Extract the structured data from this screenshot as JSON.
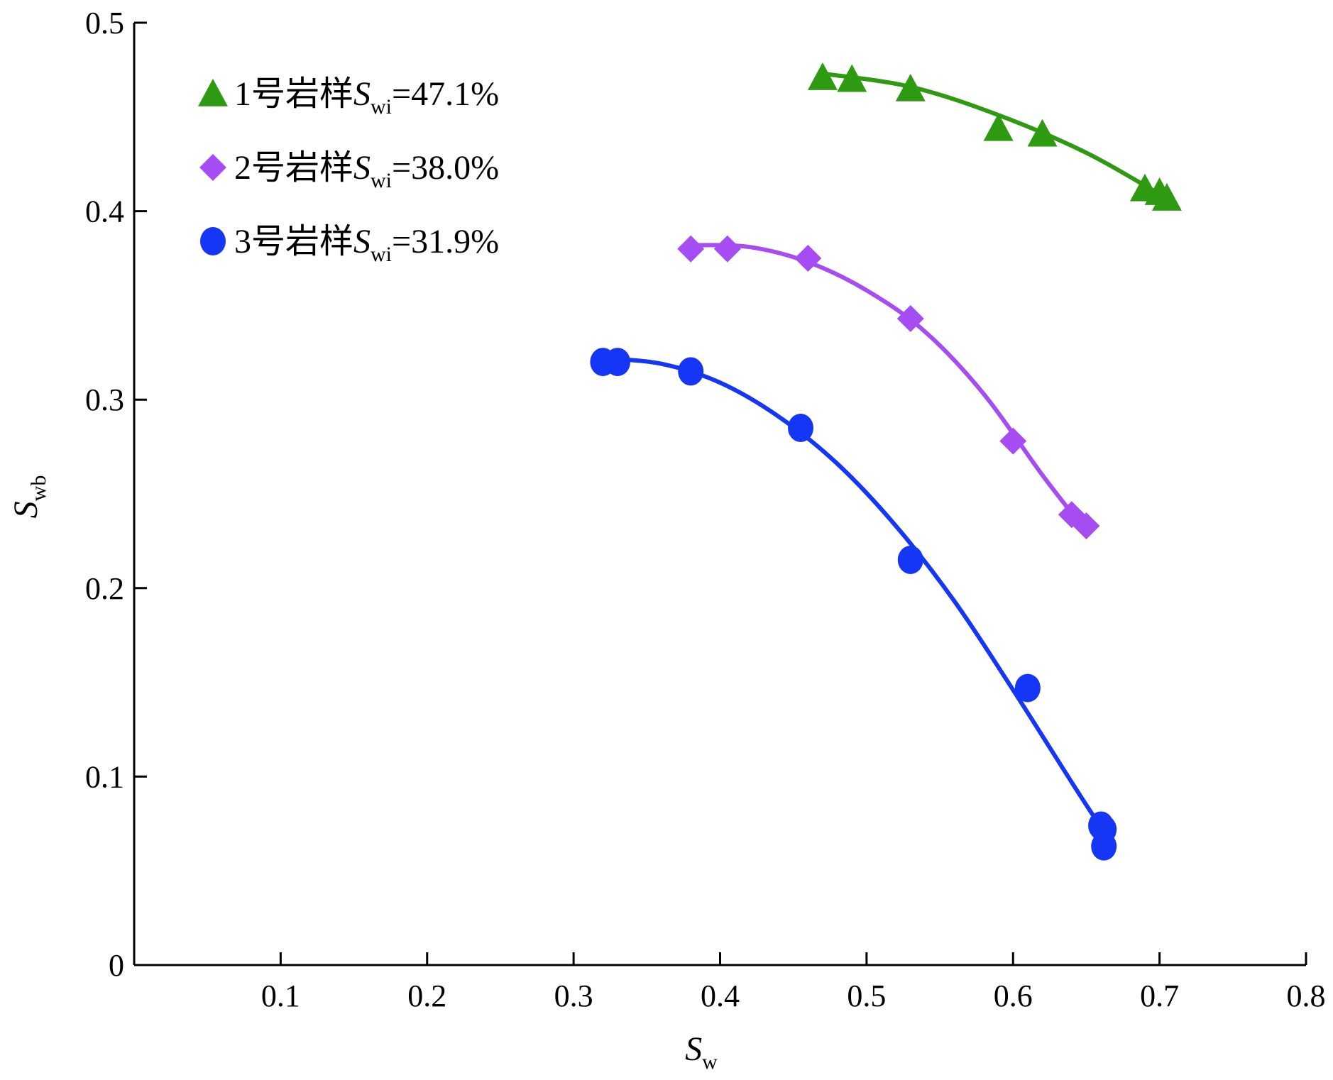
{
  "chart_data": {
    "type": "scatter",
    "xlabel": "S",
    "xlabel_sub": "w",
    "ylabel": "S",
    "ylabel_sub": "wb",
    "xlim": [
      0,
      0.8
    ],
    "ylim": [
      0,
      0.5
    ],
    "x_ticks": [
      "0.1",
      "0.2",
      "0.3",
      "0.4",
      "0.5",
      "0.6",
      "0.7",
      "0.8"
    ],
    "y_ticks": [
      "0",
      "0.1",
      "0.2",
      "0.3",
      "0.4",
      "0.5"
    ],
    "x_tick_values": [
      0.1,
      0.2,
      0.3,
      0.4,
      0.5,
      0.6,
      0.7,
      0.8
    ],
    "y_tick_values": [
      0,
      0.1,
      0.2,
      0.3,
      0.4,
      0.5
    ],
    "grid": false,
    "legend_position": "top-left",
    "series": [
      {
        "label_prefix": "1号岩样",
        "label_var": "S",
        "label_sub": "wi",
        "label_suffix": "=47.1%",
        "marker": "triangle",
        "color": "#2e9a12",
        "points": [
          {
            "x": 0.47,
            "y": 0.471
          },
          {
            "x": 0.49,
            "y": 0.47
          },
          {
            "x": 0.53,
            "y": 0.465
          },
          {
            "x": 0.59,
            "y": 0.444
          },
          {
            "x": 0.62,
            "y": 0.441
          },
          {
            "x": 0.69,
            "y": 0.412
          },
          {
            "x": 0.7,
            "y": 0.41
          },
          {
            "x": 0.705,
            "y": 0.407
          }
        ],
        "fit": [
          {
            "x": 0.47,
            "y": 0.473
          },
          {
            "x": 0.53,
            "y": 0.466
          },
          {
            "x": 0.59,
            "y": 0.451
          },
          {
            "x": 0.65,
            "y": 0.431
          },
          {
            "x": 0.7,
            "y": 0.409
          }
        ]
      },
      {
        "label_prefix": "2号岩样",
        "label_var": "S",
        "label_sub": "wi",
        "label_suffix": "=38.0%",
        "marker": "diamond",
        "color": "#a54cf2",
        "points": [
          {
            "x": 0.38,
            "y": 0.38
          },
          {
            "x": 0.405,
            "y": 0.38
          },
          {
            "x": 0.46,
            "y": 0.375
          },
          {
            "x": 0.53,
            "y": 0.343
          },
          {
            "x": 0.6,
            "y": 0.278
          },
          {
            "x": 0.64,
            "y": 0.239
          },
          {
            "x": 0.65,
            "y": 0.233
          }
        ],
        "fit": [
          {
            "x": 0.38,
            "y": 0.382
          },
          {
            "x": 0.42,
            "y": 0.381
          },
          {
            "x": 0.46,
            "y": 0.373
          },
          {
            "x": 0.5,
            "y": 0.358
          },
          {
            "x": 0.54,
            "y": 0.336
          },
          {
            "x": 0.58,
            "y": 0.303
          },
          {
            "x": 0.62,
            "y": 0.26
          },
          {
            "x": 0.65,
            "y": 0.23
          }
        ]
      },
      {
        "label_prefix": "3号岩样",
        "label_var": "S",
        "label_sub": "wi",
        "label_suffix": "=31.9%",
        "marker": "circle",
        "color": "#1536f5",
        "points": [
          {
            "x": 0.32,
            "y": 0.32
          },
          {
            "x": 0.33,
            "y": 0.32
          },
          {
            "x": 0.38,
            "y": 0.315
          },
          {
            "x": 0.455,
            "y": 0.285
          },
          {
            "x": 0.53,
            "y": 0.215
          },
          {
            "x": 0.61,
            "y": 0.147
          },
          {
            "x": 0.66,
            "y": 0.074
          },
          {
            "x": 0.662,
            "y": 0.072
          },
          {
            "x": 0.662,
            "y": 0.063
          }
        ],
        "fit": [
          {
            "x": 0.32,
            "y": 0.322
          },
          {
            "x": 0.36,
            "y": 0.319
          },
          {
            "x": 0.4,
            "y": 0.309
          },
          {
            "x": 0.44,
            "y": 0.291
          },
          {
            "x": 0.48,
            "y": 0.266
          },
          {
            "x": 0.52,
            "y": 0.233
          },
          {
            "x": 0.56,
            "y": 0.193
          },
          {
            "x": 0.6,
            "y": 0.146
          },
          {
            "x": 0.64,
            "y": 0.097
          },
          {
            "x": 0.66,
            "y": 0.073
          }
        ]
      }
    ]
  }
}
